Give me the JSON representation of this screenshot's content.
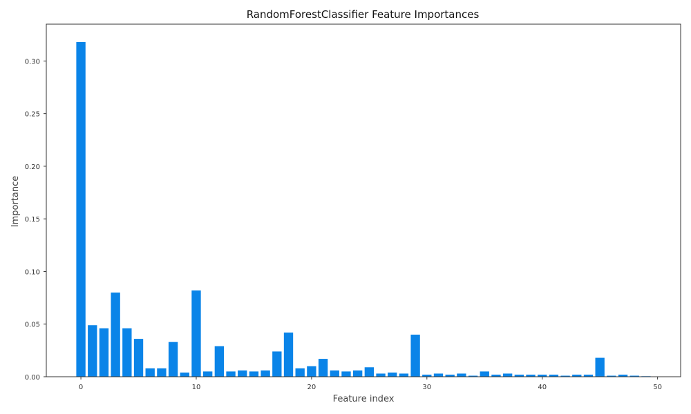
{
  "chart_data": {
    "type": "bar",
    "title": "RandomForestClassifier Feature Importances",
    "xlabel": "Feature index",
    "ylabel": "Importance",
    "xlim": [
      -3,
      52
    ],
    "ylim": [
      0,
      0.335
    ],
    "x_ticks": [
      0,
      10,
      20,
      30,
      40,
      50
    ],
    "y_ticks": [
      0.0,
      0.05,
      0.1,
      0.15,
      0.2,
      0.25,
      0.3
    ],
    "x_tick_labels": [
      "0",
      "10",
      "20",
      "30",
      "40",
      "50"
    ],
    "y_tick_labels": [
      "0.00",
      "0.05",
      "0.10",
      "0.15",
      "0.20",
      "0.25",
      "0.30"
    ],
    "categories": [
      0,
      1,
      2,
      3,
      4,
      5,
      6,
      7,
      8,
      9,
      10,
      11,
      12,
      13,
      14,
      15,
      16,
      17,
      18,
      19,
      20,
      21,
      22,
      23,
      24,
      25,
      26,
      27,
      28,
      29,
      30,
      31,
      32,
      33,
      34,
      35,
      36,
      37,
      38,
      39,
      40,
      41,
      42,
      43,
      44,
      45,
      46,
      47,
      48,
      49
    ],
    "values": [
      0.318,
      0.049,
      0.046,
      0.08,
      0.046,
      0.036,
      0.008,
      0.008,
      0.033,
      0.004,
      0.082,
      0.005,
      0.029,
      0.005,
      0.006,
      0.005,
      0.006,
      0.024,
      0.042,
      0.008,
      0.01,
      0.017,
      0.006,
      0.005,
      0.006,
      0.009,
      0.003,
      0.004,
      0.003,
      0.04,
      0.002,
      0.003,
      0.002,
      0.003,
      0.001,
      0.005,
      0.002,
      0.003,
      0.002,
      0.002,
      0.002,
      0.002,
      0.001,
      0.002,
      0.002,
      0.018,
      0.001,
      0.002,
      0.001,
      0.0005
    ],
    "bar_color": "#0a84e8",
    "grid": false,
    "legend": "none"
  }
}
